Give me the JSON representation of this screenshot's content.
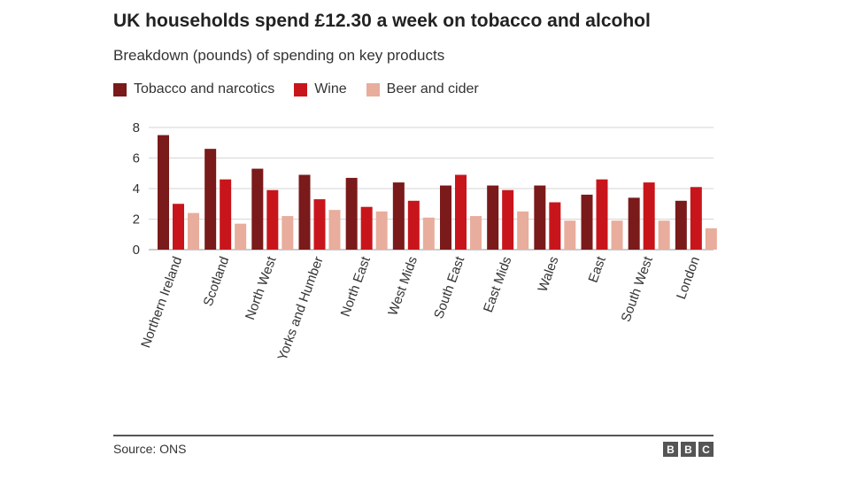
{
  "chart_data": {
    "type": "bar",
    "title": "UK households spend £12.30 a week on tobacco and alcohol",
    "subtitle": "Breakdown (pounds) of spending on key products",
    "categories": [
      "Northern Ireland",
      "Scotland",
      "North West",
      "Yorks and Humber",
      "North East",
      "West Mids",
      "South East",
      "East Mids",
      "Wales",
      "East",
      "South West",
      "London"
    ],
    "series": [
      {
        "name": "Tobacco and narcotics",
        "color": "#7a1a1a",
        "values": [
          7.5,
          6.6,
          5.3,
          4.9,
          4.7,
          4.4,
          4.2,
          4.2,
          4.2,
          3.6,
          3.4,
          3.2
        ]
      },
      {
        "name": "Wine",
        "color": "#c8151b",
        "values": [
          3.0,
          4.6,
          3.9,
          3.3,
          2.8,
          3.2,
          4.9,
          3.9,
          3.1,
          4.6,
          4.4,
          4.1
        ]
      },
      {
        "name": "Beer and cider",
        "color": "#e8ad9c",
        "values": [
          2.4,
          1.7,
          2.2,
          2.6,
          2.5,
          2.1,
          2.2,
          2.5,
          1.9,
          1.9,
          1.9,
          1.4
        ]
      }
    ],
    "ylim": [
      0,
      8
    ],
    "yticks": [
      "0",
      "2",
      "4",
      "6",
      "8"
    ],
    "grid": true,
    "legend": "top-left"
  },
  "footer": {
    "source": "Source: ONS",
    "logo_letters": [
      "B",
      "B",
      "C"
    ]
  }
}
